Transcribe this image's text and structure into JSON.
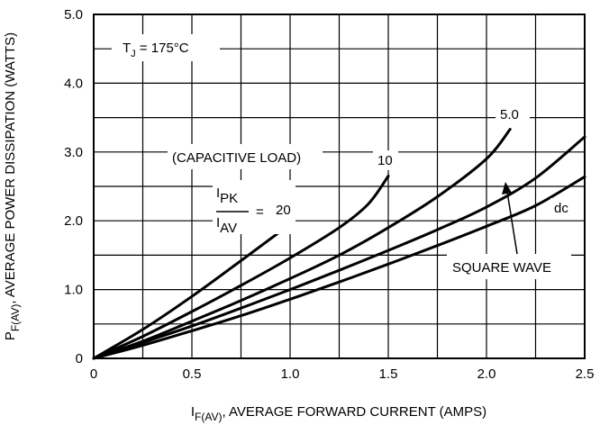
{
  "chart_data": {
    "type": "line",
    "xlabel": {
      "main": "I",
      "sub": "F(AV)",
      "rest": ", AVERAGE FORWARD CURRENT (AMPS)"
    },
    "ylabel": {
      "main": "P",
      "sub": "F(AV)",
      "rest": ", AVERAGE POWER DISSIPATION (WATTS)"
    },
    "xlim": [
      0,
      2.5
    ],
    "ylim": [
      0,
      5.0
    ],
    "grid": true,
    "x_ticks": [
      {
        "value": 0,
        "label": "0"
      },
      {
        "value": 0.5,
        "label": "0.5"
      },
      {
        "value": 1.0,
        "label": "1.0"
      },
      {
        "value": 1.5,
        "label": "1.5"
      },
      {
        "value": 2.0,
        "label": "2.0"
      },
      {
        "value": 2.5,
        "label": "2.5"
      }
    ],
    "y_ticks": [
      {
        "value": 0,
        "label": "0"
      },
      {
        "value": 1.0,
        "label": "1.0"
      },
      {
        "value": 2.0,
        "label": "2.0"
      },
      {
        "value": 3.0,
        "label": "3.0"
      },
      {
        "value": 4.0,
        "label": "4.0"
      },
      {
        "value": 5.0,
        "label": "5.0"
      }
    ],
    "series": [
      {
        "name": "20",
        "x": [
          0,
          0.25,
          0.5,
          0.75,
          1.0
        ],
        "y": [
          0,
          0.42,
          0.9,
          1.42,
          1.95
        ]
      },
      {
        "name": "10",
        "x": [
          0,
          0.25,
          0.5,
          0.75,
          1.0,
          1.25,
          1.4,
          1.5
        ],
        "y": [
          0,
          0.32,
          0.68,
          1.06,
          1.46,
          1.9,
          2.25,
          2.65
        ]
      },
      {
        "name": "5.0",
        "x": [
          0,
          0.25,
          0.5,
          0.75,
          1.0,
          1.25,
          1.5,
          1.75,
          2.0,
          2.12
        ],
        "y": [
          0,
          0.25,
          0.54,
          0.84,
          1.16,
          1.5,
          1.9,
          2.35,
          2.9,
          3.33
        ]
      },
      {
        "name": "SQUARE WAVE",
        "x": [
          0,
          0.25,
          0.5,
          0.75,
          1.0,
          1.25,
          1.5,
          1.75,
          2.0,
          2.25,
          2.5
        ],
        "y": [
          0,
          0.23,
          0.47,
          0.73,
          1.0,
          1.28,
          1.57,
          1.87,
          2.2,
          2.62,
          3.22
        ]
      },
      {
        "name": "dc",
        "x": [
          0,
          0.25,
          0.5,
          0.75,
          1.0,
          1.25,
          1.5,
          1.75,
          2.0,
          2.25,
          2.5
        ],
        "y": [
          0,
          0.19,
          0.4,
          0.62,
          0.86,
          1.11,
          1.37,
          1.64,
          1.92,
          2.22,
          2.64
        ]
      }
    ],
    "annotations": {
      "tj_main": "T",
      "tj_sub": "J",
      "tj_rest": " = 175°C",
      "capacitive": "(CAPACITIVE LOAD)",
      "ratio_num_main": "I",
      "ratio_num_sub": "PK",
      "ratio_den_main": "I",
      "ratio_den_sub": "AV",
      "ratio_eq": "=",
      "label_20": "20",
      "label_10": "10",
      "label_5": "5.0",
      "label_dc": "dc",
      "label_square": "SQUARE WAVE"
    }
  }
}
